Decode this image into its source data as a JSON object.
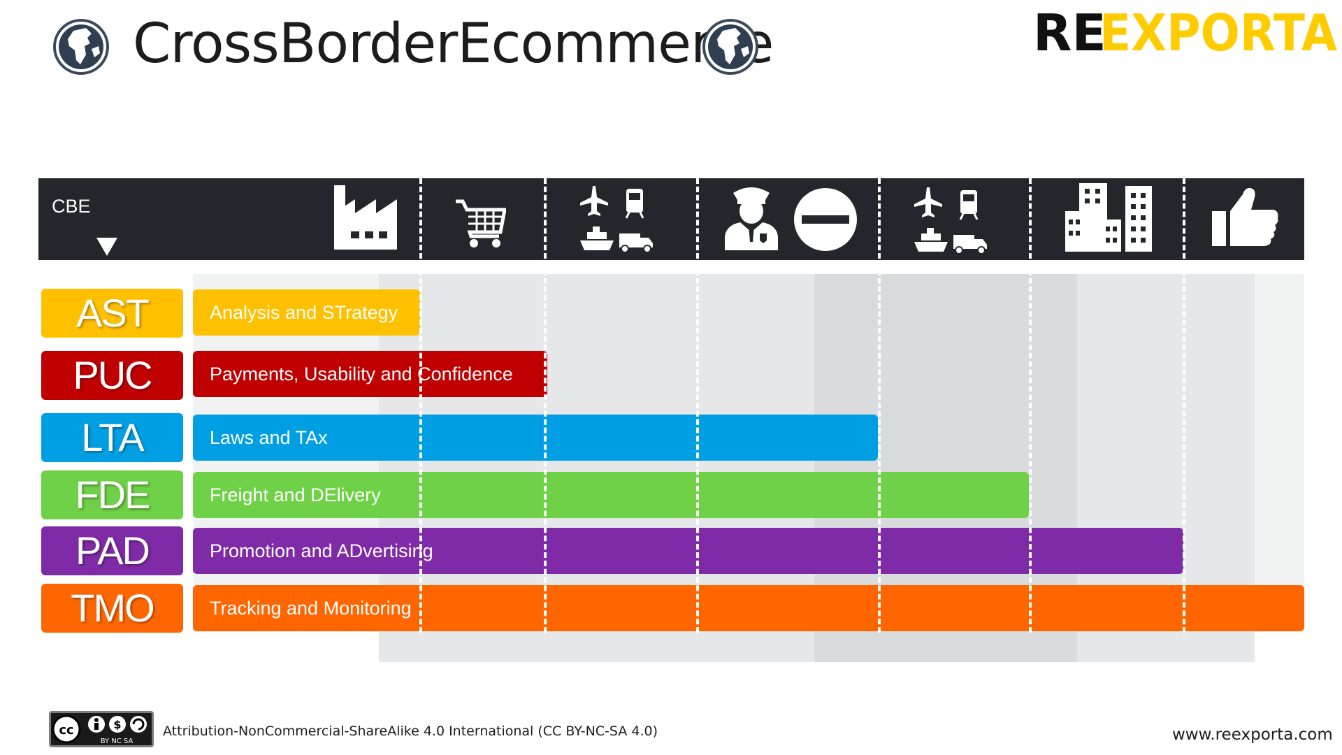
{
  "title": "CrossBorderEcommerce",
  "logo": {
    "part1": "RE",
    "part2": "EXPORTA"
  },
  "header": {
    "label": "CBE"
  },
  "icons": [
    "factory-icon",
    "shopping-cart-icon",
    "transport-icon",
    "customs-officer-icon",
    "no-entry-icon",
    "transport-icon",
    "city-buildings-icon",
    "thumbs-up-icon"
  ],
  "rows": [
    {
      "code": "AST",
      "label": "Analysis and STrategy",
      "color": "#ffc000"
    },
    {
      "code": "PUC",
      "label": "Payments, Usability and Confidence",
      "color": "#c00000"
    },
    {
      "code": "LTA",
      "label": "Laws and TAx",
      "color": "#009fe3"
    },
    {
      "code": "FDE",
      "label": "Freight and DElivery",
      "color": "#6fd147"
    },
    {
      "code": "PAD",
      "label": "Promotion and ADvertising",
      "color": "#7f2aa6"
    },
    {
      "code": "TMO",
      "label": "Tracking and Monitoring",
      "color": "#ff6600"
    }
  ],
  "footer": {
    "cc_badge": {
      "cc": "cc",
      "terms": "BY  NC  SA"
    },
    "license": "Attribution-NonCommercial-ShareAlike 4.0 International (CC BY-NC-SA 4.0)",
    "website": "www.reexporta.com"
  }
}
